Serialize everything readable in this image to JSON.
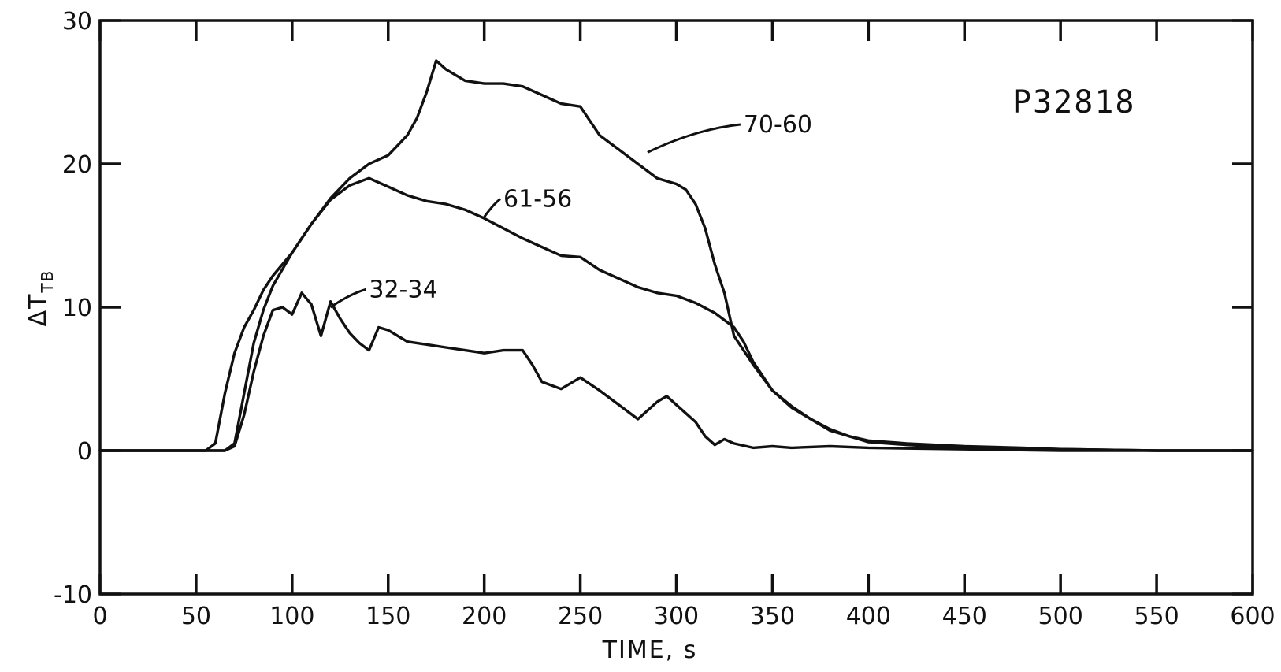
{
  "chart_data": {
    "type": "line",
    "title": "",
    "run_id": "P32818",
    "xlabel": "TIME, s",
    "ylabel": "ΔT",
    "ylabel_subscript": "TB",
    "xlim": [
      0,
      600
    ],
    "ylim": [
      -10,
      30
    ],
    "x_ticks": [
      "0",
      "50",
      "100",
      "150",
      "200",
      "250",
      "300",
      "350",
      "400",
      "450",
      "500",
      "550",
      "600"
    ],
    "y_ticks": [
      "-10",
      "0",
      "10",
      "20",
      "30"
    ],
    "grid": false,
    "legend": "none",
    "series": [
      {
        "name": "70-60",
        "label_x": 335,
        "label_y": 22.2,
        "pointer": [
          285,
          20.8
        ],
        "points": [
          [
            0,
            0
          ],
          [
            55,
            0
          ],
          [
            60,
            0.5
          ],
          [
            65,
            4
          ],
          [
            70,
            6.8
          ],
          [
            75,
            8.6
          ],
          [
            80,
            9.8
          ],
          [
            85,
            11.2
          ],
          [
            90,
            12.2
          ],
          [
            100,
            13.8
          ],
          [
            110,
            15.8
          ],
          [
            120,
            17.6
          ],
          [
            130,
            19
          ],
          [
            140,
            20
          ],
          [
            150,
            20.6
          ],
          [
            160,
            22
          ],
          [
            165,
            23.2
          ],
          [
            170,
            25
          ],
          [
            175,
            27.2
          ],
          [
            180,
            26.6
          ],
          [
            190,
            25.8
          ],
          [
            200,
            25.6
          ],
          [
            210,
            25.6
          ],
          [
            220,
            25.4
          ],
          [
            230,
            24.8
          ],
          [
            240,
            24.2
          ],
          [
            250,
            24
          ],
          [
            255,
            23
          ],
          [
            260,
            22
          ],
          [
            270,
            21
          ],
          [
            280,
            20
          ],
          [
            290,
            19
          ],
          [
            300,
            18.6
          ],
          [
            305,
            18.2
          ],
          [
            310,
            17.2
          ],
          [
            315,
            15.5
          ],
          [
            320,
            13
          ],
          [
            325,
            11
          ],
          [
            330,
            8
          ],
          [
            340,
            6
          ],
          [
            350,
            4.2
          ],
          [
            360,
            3.1
          ],
          [
            370,
            2.2
          ],
          [
            380,
            1.4
          ],
          [
            390,
            1
          ],
          [
            400,
            0.6
          ],
          [
            420,
            0.4
          ],
          [
            450,
            0.2
          ],
          [
            500,
            0.1
          ],
          [
            550,
            0
          ],
          [
            600,
            0
          ]
        ]
      },
      {
        "name": "61-56",
        "label_x": 210,
        "label_y": 17,
        "pointer": [
          200,
          16.3
        ],
        "points": [
          [
            0,
            0
          ],
          [
            65,
            0
          ],
          [
            70,
            0.5
          ],
          [
            75,
            4
          ],
          [
            80,
            7.5
          ],
          [
            85,
            9.8
          ],
          [
            90,
            11.5
          ],
          [
            100,
            13.8
          ],
          [
            110,
            15.8
          ],
          [
            120,
            17.5
          ],
          [
            130,
            18.5
          ],
          [
            140,
            19
          ],
          [
            150,
            18.4
          ],
          [
            160,
            17.8
          ],
          [
            170,
            17.4
          ],
          [
            180,
            17.2
          ],
          [
            190,
            16.8
          ],
          [
            200,
            16.2
          ],
          [
            210,
            15.5
          ],
          [
            220,
            14.8
          ],
          [
            230,
            14.2
          ],
          [
            240,
            13.6
          ],
          [
            250,
            13.5
          ],
          [
            260,
            12.6
          ],
          [
            270,
            12
          ],
          [
            280,
            11.4
          ],
          [
            290,
            11
          ],
          [
            300,
            10.8
          ],
          [
            310,
            10.3
          ],
          [
            320,
            9.6
          ],
          [
            330,
            8.6
          ],
          [
            335,
            7.6
          ],
          [
            340,
            6.2
          ],
          [
            345,
            5.2
          ],
          [
            350,
            4.2
          ],
          [
            360,
            3
          ],
          [
            370,
            2.2
          ],
          [
            380,
            1.5
          ],
          [
            390,
            1
          ],
          [
            400,
            0.7
          ],
          [
            420,
            0.5
          ],
          [
            450,
            0.3
          ],
          [
            480,
            0.2
          ],
          [
            500,
            0.1
          ],
          [
            550,
            0
          ],
          [
            600,
            0
          ]
        ]
      },
      {
        "name": "32-34",
        "label_x": 140,
        "label_y": 10.7,
        "pointer": [
          120,
          10
        ],
        "points": [
          [
            0,
            0
          ],
          [
            65,
            0
          ],
          [
            70,
            0.3
          ],
          [
            75,
            2.5
          ],
          [
            80,
            5.5
          ],
          [
            85,
            8
          ],
          [
            90,
            9.8
          ],
          [
            95,
            10
          ],
          [
            100,
            9.5
          ],
          [
            105,
            11
          ],
          [
            110,
            10.2
          ],
          [
            115,
            8
          ],
          [
            120,
            10.4
          ],
          [
            125,
            9.2
          ],
          [
            130,
            8.2
          ],
          [
            135,
            7.5
          ],
          [
            140,
            7
          ],
          [
            145,
            8.6
          ],
          [
            150,
            8.4
          ],
          [
            160,
            7.6
          ],
          [
            170,
            7.4
          ],
          [
            180,
            7.2
          ],
          [
            190,
            7
          ],
          [
            200,
            6.8
          ],
          [
            210,
            7
          ],
          [
            220,
            7
          ],
          [
            225,
            6
          ],
          [
            230,
            4.8
          ],
          [
            240,
            4.3
          ],
          [
            250,
            5.1
          ],
          [
            260,
            4.2
          ],
          [
            270,
            3.2
          ],
          [
            280,
            2.2
          ],
          [
            290,
            3.4
          ],
          [
            295,
            3.8
          ],
          [
            300,
            3.2
          ],
          [
            310,
            2
          ],
          [
            315,
            1
          ],
          [
            320,
            0.4
          ],
          [
            325,
            0.8
          ],
          [
            330,
            0.5
          ],
          [
            340,
            0.2
          ],
          [
            350,
            0.3
          ],
          [
            360,
            0.2
          ],
          [
            380,
            0.3
          ],
          [
            400,
            0.2
          ],
          [
            450,
            0.1
          ],
          [
            500,
            0
          ],
          [
            600,
            0
          ]
        ]
      }
    ]
  }
}
